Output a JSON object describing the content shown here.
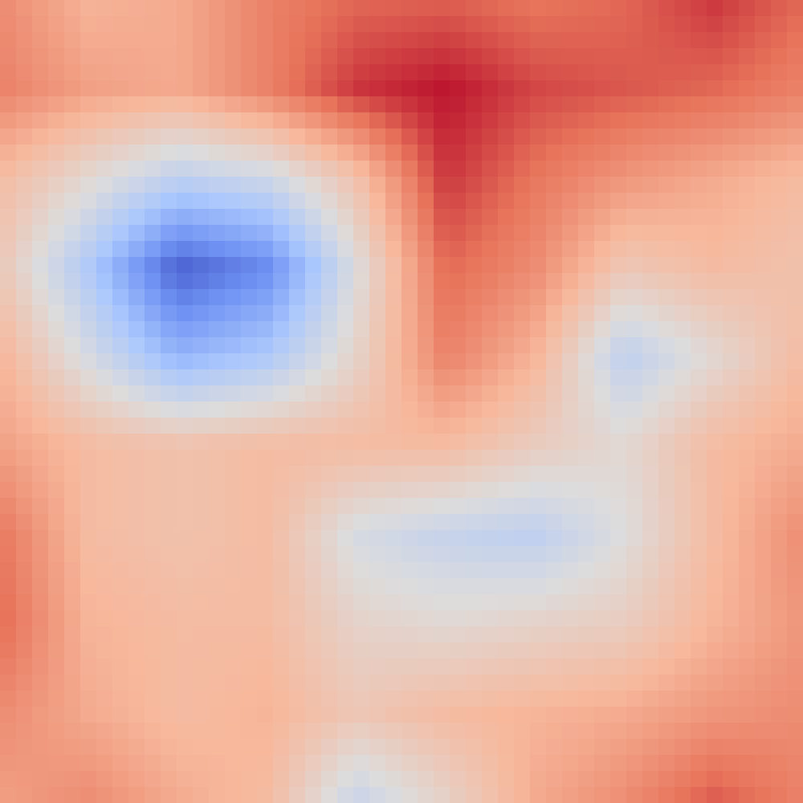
{
  "chart_data": {
    "type": "heatmap",
    "title": "",
    "xlabel": "",
    "ylabel": "",
    "axes_visible": false,
    "grid": false,
    "legend": "none",
    "colormap": "coolwarm",
    "colormap_stops": [
      "#3b4cc0",
      "#6f92f3",
      "#aac7fd",
      "#dddcdc",
      "#f7b89c",
      "#e7745b",
      "#b40426"
    ],
    "value_range": [
      -1.0,
      1.0
    ],
    "grid_shape": [
      10,
      10
    ],
    "cells": [
      [
        0.55,
        0.35,
        0.4,
        0.6,
        0.7,
        0.72,
        0.65,
        0.7,
        0.85,
        0.7
      ],
      [
        0.6,
        0.45,
        0.4,
        0.6,
        0.85,
        0.95,
        0.8,
        0.75,
        0.7,
        0.6
      ],
      [
        0.3,
        0.05,
        -0.2,
        -0.1,
        0.25,
        0.85,
        0.65,
        0.5,
        0.4,
        0.3
      ],
      [
        0.2,
        -0.3,
        -0.9,
        -0.7,
        0.0,
        0.7,
        0.55,
        0.2,
        0.3,
        0.25
      ],
      [
        0.35,
        -0.05,
        -0.45,
        -0.3,
        0.1,
        0.6,
        0.35,
        -0.2,
        0.05,
        0.3
      ],
      [
        0.45,
        0.3,
        0.25,
        0.3,
        0.3,
        0.3,
        0.15,
        0.05,
        0.3,
        0.4
      ],
      [
        0.65,
        0.3,
        0.25,
        0.3,
        -0.05,
        -0.15,
        -0.2,
        0.0,
        0.3,
        0.55
      ],
      [
        0.7,
        0.35,
        0.3,
        0.3,
        0.1,
        0.05,
        0.1,
        0.15,
        0.35,
        0.5
      ],
      [
        0.55,
        0.4,
        0.3,
        0.35,
        0.2,
        0.3,
        0.35,
        0.4,
        0.5,
        0.55
      ],
      [
        0.45,
        0.55,
        0.4,
        0.3,
        -0.15,
        0.1,
        0.4,
        0.55,
        0.75,
        0.6
      ]
    ]
  }
}
